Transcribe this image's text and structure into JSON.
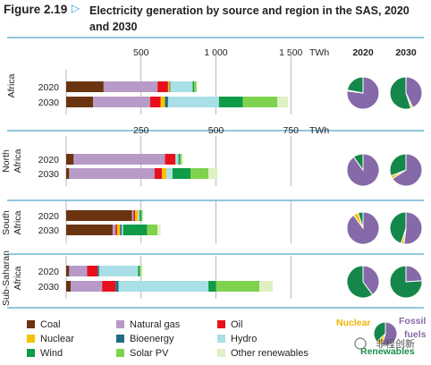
{
  "figure": {
    "label": "Figure 2.19",
    "arrow": "▷",
    "title": "Electricity generation by source and region in the SAS, 2020 and 2030"
  },
  "colors": {
    "coal": "#6b3410",
    "natural_gas": "#b89ac8",
    "oil": "#e8101a",
    "nuclear": "#f5c400",
    "bioenergy": "#1c6d85",
    "hydro": "#a9dfe6",
    "wind": "#0f9b48",
    "solar_pv": "#7fd24e",
    "other_renewables": "#dff0c2",
    "pie_fossil": "#8569a8",
    "pie_nuclear": "#f5c400",
    "pie_renewables": "#15874a",
    "gridline": "#9a9a9a",
    "separator": "#4fa8c8"
  },
  "legend": {
    "items": [
      {
        "key": "coal",
        "label": "Coal"
      },
      {
        "key": "nuclear",
        "label": "Nuclear"
      },
      {
        "key": "wind",
        "label": "Wind"
      },
      {
        "key": "natural_gas",
        "label": "Natural gas"
      },
      {
        "key": "bioenergy",
        "label": "Bioenergy"
      },
      {
        "key": "solar_pv",
        "label": "Solar PV"
      },
      {
        "key": "oil",
        "label": "Oil"
      },
      {
        "key": "hydro",
        "label": "Hydro"
      },
      {
        "key": "other_renewables",
        "label": "Other renewables"
      }
    ]
  },
  "pie_key": {
    "nuclear": "Nuclear",
    "fossil": "Fossil",
    "fuels": "fuels",
    "renewables": "Renewables",
    "shares": [
      0.55,
      0.08,
      0.37
    ]
  },
  "pie_headers": [
    "2020",
    "2030"
  ],
  "watermark": "非程创新",
  "chart_data": {
    "type": "bar",
    "orientation": "horizontal-stacked",
    "title": "Electricity generation by source and region in the SAS, 2020 and 2030",
    "series_order": [
      "coal",
      "natural_gas",
      "oil",
      "nuclear",
      "bioenergy",
      "hydro",
      "wind",
      "solar_pv",
      "other_renewables"
    ],
    "panels": [
      {
        "region": "Africa",
        "unit": "TWh",
        "ticks": [
          "500",
          "1 000",
          "1 500"
        ],
        "tick_values": [
          500,
          1000,
          1500
        ],
        "xlim": [
          0,
          1600
        ],
        "rows": [
          {
            "year": "2020",
            "values": {
              "coal": 250,
              "natural_gas": 360,
              "oil": 70,
              "nuclear": 10,
              "bioenergy": 5,
              "hydro": 150,
              "wind": 10,
              "solar_pv": 15,
              "other_renewables": 5
            },
            "pie": {
              "fossil": 0.77,
              "nuclear": 0.01,
              "renewables": 0.22
            }
          },
          {
            "year": "2030",
            "values": {
              "coal": 180,
              "natural_gas": 380,
              "oil": 70,
              "nuclear": 30,
              "bioenergy": 20,
              "hydro": 340,
              "wind": 160,
              "solar_pv": 230,
              "other_renewables": 70
            },
            "pie": {
              "fossil": 0.43,
              "nuclear": 0.02,
              "renewables": 0.55
            }
          }
        ]
      },
      {
        "region": "North Africa",
        "unit": "TWh",
        "ticks": [
          "250",
          "500",
          "750"
        ],
        "tick_values": [
          250,
          500,
          750
        ],
        "xlim": [
          0,
          800
        ],
        "rows": [
          {
            "year": "2020",
            "values": {
              "coal": 25,
              "natural_gas": 305,
              "oil": 35,
              "nuclear": 0,
              "bioenergy": 0,
              "hydro": 10,
              "wind": 5,
              "solar_pv": 5,
              "other_renewables": 5
            },
            "pie": {
              "fossil": 0.9,
              "nuclear": 0.0,
              "renewables": 0.1
            }
          },
          {
            "year": "2030",
            "values": {
              "coal": 10,
              "natural_gas": 285,
              "oil": 25,
              "nuclear": 15,
              "bioenergy": 0,
              "hydro": 20,
              "wind": 60,
              "solar_pv": 60,
              "other_renewables": 30
            },
            "pie": {
              "fossil": 0.66,
              "nuclear": 0.03,
              "renewables": 0.31
            }
          }
        ]
      },
      {
        "region": "South Africa",
        "unit": "TWh",
        "ticks": [
          "250",
          "500",
          "750"
        ],
        "tick_values": [
          250,
          500,
          750
        ],
        "xlim": [
          0,
          800
        ],
        "rows": [
          {
            "year": "2020",
            "values": {
              "coal": 220,
              "natural_gas": 5,
              "oil": 5,
              "nuclear": 10,
              "bioenergy": 0,
              "hydro": 5,
              "wind": 5,
              "solar_pv": 5,
              "other_renewables": 0
            },
            "pie": {
              "fossil": 0.9,
              "nuclear": 0.05,
              "renewables": 0.05
            }
          },
          {
            "year": "2030",
            "values": {
              "coal": 155,
              "natural_gas": 10,
              "oil": 5,
              "nuclear": 10,
              "bioenergy": 5,
              "hydro": 5,
              "wind": 80,
              "solar_pv": 35,
              "other_renewables": 10
            },
            "pie": {
              "fossil": 0.52,
              "nuclear": 0.03,
              "renewables": 0.45
            }
          }
        ]
      },
      {
        "region": "Sub-Saharan Africa",
        "unit": "TWh",
        "ticks": [
          "250",
          "500",
          "750"
        ],
        "tick_values": [
          250,
          500,
          750
        ],
        "xlim": [
          0,
          800
        ],
        "rows": [
          {
            "year": "2020",
            "values": {
              "coal": 10,
              "natural_gas": 60,
              "oil": 35,
              "nuclear": 0,
              "bioenergy": 5,
              "hydro": 130,
              "wind": 5,
              "solar_pv": 5,
              "other_renewables": 5
            },
            "pie": {
              "fossil": 0.4,
              "nuclear": 0.0,
              "renewables": 0.6
            }
          },
          {
            "year": "2030",
            "values": {
              "coal": 15,
              "natural_gas": 105,
              "oil": 45,
              "nuclear": 0,
              "bioenergy": 10,
              "hydro": 300,
              "wind": 25,
              "solar_pv": 145,
              "other_renewables": 45
            },
            "pie": {
              "fossil": 0.24,
              "nuclear": 0.0,
              "renewables": 0.76
            }
          }
        ]
      }
    ]
  }
}
